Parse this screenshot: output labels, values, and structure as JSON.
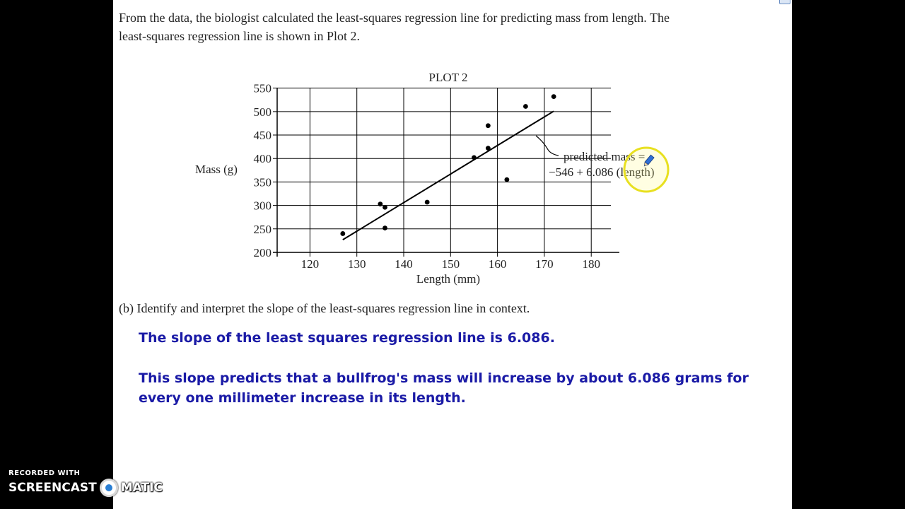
{
  "intro": {
    "line1": "From the data, the biologist calculated the least-squares regression line for predicting mass from length. The",
    "line2": "least-squares regression line is shown in Plot 2."
  },
  "chart_data": {
    "type": "scatter",
    "title": "PLOT 2",
    "xlabel": "Length (mm)",
    "ylabel": "Mass (g)",
    "xlim": [
      113,
      186
    ],
    "ylim": [
      200,
      560
    ],
    "xticks": [
      120,
      130,
      140,
      150,
      160,
      170,
      180
    ],
    "yticks": [
      200,
      250,
      300,
      350,
      400,
      450,
      500,
      550
    ],
    "grid": true,
    "points": [
      {
        "x": 127,
        "y": 240
      },
      {
        "x": 135,
        "y": 303
      },
      {
        "x": 136,
        "y": 296
      },
      {
        "x": 136,
        "y": 252
      },
      {
        "x": 145,
        "y": 307
      },
      {
        "x": 155,
        "y": 402
      },
      {
        "x": 158,
        "y": 470
      },
      {
        "x": 158,
        "y": 422
      },
      {
        "x": 162,
        "y": 355
      },
      {
        "x": 166,
        "y": 511
      },
      {
        "x": 172,
        "y": 532
      }
    ],
    "regression_line": {
      "intercept": -546,
      "slope": 6.086,
      "x_range": [
        127,
        172
      ]
    },
    "annotation_line1": "predicted mass =",
    "annotation_line2": "−546 + 6.086 (length)"
  },
  "part_b": "(b) Identify and interpret the slope of the least-squares regression line in context.",
  "answer": {
    "line1": "The slope of the least squares regression line is 6.086.",
    "line2": "This slope predicts that a bullfrog's mass will increase by about 6.086 grams for every one millimeter increase in its length."
  },
  "watermark": {
    "recorded_with": "RECORDED WITH",
    "brand_left": "SCREENCAST",
    "brand_right": "MATIC"
  },
  "colors": {
    "answer_text": "#1a1aa6",
    "cursor_highlight": "#e8e020"
  }
}
